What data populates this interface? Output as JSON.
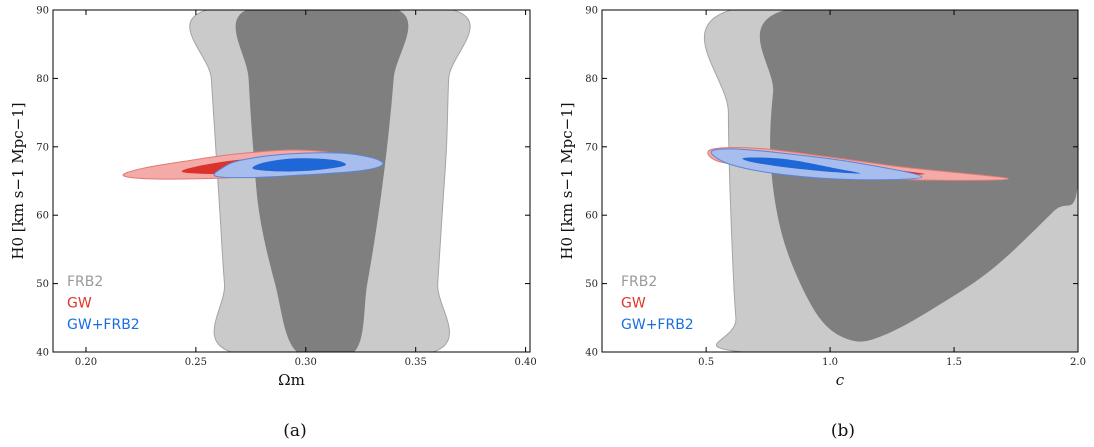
{
  "colors": {
    "frb_outer": "#cacaca",
    "frb_inner": "#7f7f7f",
    "gw_outer": "#f4aaa6",
    "gw_inner": "#d9332b",
    "joint_outer": "#a6bdee",
    "joint_inner": "#1f66d6",
    "legend_frb": "#9a9a9a",
    "legend_gw": "#e0362c",
    "legend_joint": "#1a6fe0"
  },
  "chart_data": [
    {
      "type": "contour",
      "panel_label": "(a)",
      "xlabel": "Ωm",
      "ylabel": "H0 [km s−1 Mpc−1]",
      "xlim": [
        0.185,
        0.402
      ],
      "ylim": [
        40,
        90
      ],
      "xticks": [
        0.2,
        0.25,
        0.3,
        0.35,
        0.4
      ],
      "xtick_labels": [
        "0.20",
        "0.25",
        "0.30",
        "0.35",
        "0.40"
      ],
      "yticks": [
        40,
        50,
        60,
        70,
        80,
        90
      ],
      "ytick_labels": [
        "40",
        "50",
        "60",
        "70",
        "80",
        "90"
      ],
      "legend": [
        "FRB2",
        "GW",
        "GW+FRB2"
      ],
      "legend_location": "lower-left",
      "series": [
        {
          "name": "FRB2",
          "level": "outer",
          "points": [
            [
              0.255,
              90
            ],
            [
              0.257,
              80
            ],
            [
              0.259,
              70
            ],
            [
              0.261,
              60
            ],
            [
              0.263,
              50
            ],
            [
              0.266,
              40
            ],
            [
              0.358,
              40
            ],
            [
              0.36,
              50
            ],
            [
              0.362,
              60
            ],
            [
              0.364,
              70
            ],
            [
              0.365,
              80
            ],
            [
              0.367,
              90
            ]
          ]
        },
        {
          "name": "FRB2",
          "level": "inner",
          "points": [
            [
              0.273,
              90
            ],
            [
              0.274,
              80
            ],
            [
              0.276,
              70
            ],
            [
              0.279,
              60
            ],
            [
              0.286,
              50
            ],
            [
              0.296,
              40
            ],
            [
              0.322,
              40
            ],
            [
              0.328,
              50
            ],
            [
              0.333,
              60
            ],
            [
              0.337,
              70
            ],
            [
              0.34,
              80
            ],
            [
              0.342,
              90
            ]
          ]
        },
        {
          "name": "GW",
          "level": "outer",
          "points": [
            [
              0.217,
              65.8
            ],
            [
              0.225,
              66.8
            ],
            [
              0.245,
              67.9
            ],
            [
              0.27,
              69.0
            ],
            [
              0.3,
              69.5
            ],
            [
              0.33,
              68.2
            ],
            [
              0.333,
              67.5
            ],
            [
              0.32,
              66.6
            ],
            [
              0.29,
              65.9
            ],
            [
              0.26,
              65.4
            ],
            [
              0.23,
              65.3
            ]
          ]
        },
        {
          "name": "GW",
          "level": "inner",
          "points": [
            [
              0.244,
              66.3
            ],
            [
              0.25,
              67.1
            ],
            [
              0.27,
              68.1
            ],
            [
              0.295,
              68.4
            ],
            [
              0.31,
              67.6
            ],
            [
              0.3,
              66.7
            ],
            [
              0.28,
              66.1
            ],
            [
              0.26,
              66.0
            ]
          ]
        },
        {
          "name": "GW+FRB2",
          "level": "outer",
          "points": [
            [
              0.259,
              65.7
            ],
            [
              0.262,
              66.9
            ],
            [
              0.27,
              68.0
            ],
            [
              0.29,
              68.9
            ],
            [
              0.315,
              69.1
            ],
            [
              0.33,
              68.4
            ],
            [
              0.335,
              67.4
            ],
            [
              0.325,
              66.5
            ],
            [
              0.3,
              65.9
            ],
            [
              0.275,
              65.5
            ]
          ]
        },
        {
          "name": "GW+FRB2",
          "level": "inner",
          "points": [
            [
              0.276,
              66.8
            ],
            [
              0.281,
              67.7
            ],
            [
              0.295,
              68.3
            ],
            [
              0.312,
              68.1
            ],
            [
              0.318,
              67.3
            ],
            [
              0.305,
              66.6
            ],
            [
              0.288,
              66.4
            ]
          ]
        }
      ]
    },
    {
      "type": "contour",
      "panel_label": "(b)",
      "xlabel": "c",
      "ylabel": "H0 [km s−1 Mpc−1]",
      "xlim": [
        0.08,
        2.0
      ],
      "ylim": [
        40,
        90
      ],
      "xticks": [
        0.5,
        1.0,
        1.5,
        2.0
      ],
      "xtick_labels": [
        "0.5",
        "1.0",
        "1.5",
        "2.0"
      ],
      "yticks": [
        40,
        50,
        60,
        70,
        80,
        90
      ],
      "ytick_labels": [
        "40",
        "50",
        "60",
        "70",
        "80",
        "90"
      ],
      "legend": [
        "FRB2",
        "GW",
        "GW+FRB2"
      ],
      "legend_location": "lower-left",
      "series": [
        {
          "name": "FRB2",
          "level": "outer",
          "points": [
            [
              0.6,
              90
            ],
            [
              0.59,
              75
            ],
            [
              0.6,
              60
            ],
            [
              0.62,
              45
            ],
            [
              0.65,
              40
            ],
            [
              2.0,
              40
            ],
            [
              2.0,
              90
            ]
          ]
        },
        {
          "name": "FRB2",
          "level": "inner",
          "points": [
            [
              0.82,
              90
            ],
            [
              0.77,
              78
            ],
            [
              0.76,
              68
            ],
            [
              0.8,
              58
            ],
            [
              0.88,
              50
            ],
            [
              0.98,
              44
            ],
            [
              1.1,
              41.6
            ],
            [
              1.22,
              42.5
            ],
            [
              1.4,
              46
            ],
            [
              1.65,
              52
            ],
            [
              1.9,
              60.5
            ],
            [
              2.0,
              64.5
            ],
            [
              2.0,
              90
            ]
          ]
        },
        {
          "name": "GW",
          "level": "outer",
          "points": [
            [
              0.52,
              69.6
            ],
            [
              0.7,
              69.8
            ],
            [
              1.0,
              68.5
            ],
            [
              1.3,
              67.0
            ],
            [
              1.72,
              65.3
            ],
            [
              1.3,
              65.2
            ],
            [
              1.0,
              66.0
            ],
            [
              0.7,
              67.0
            ],
            [
              0.54,
              68.0
            ]
          ]
        },
        {
          "name": "GW",
          "level": "inner",
          "points": [
            [
              0.66,
              68.8
            ],
            [
              0.9,
              68.0
            ],
            [
              1.2,
              66.9
            ],
            [
              1.38,
              66.0
            ],
            [
              1.15,
              66.2
            ],
            [
              0.85,
              67.0
            ],
            [
              0.68,
              67.9
            ]
          ]
        },
        {
          "name": "GW+FRB2",
          "level": "outer",
          "points": [
            [
              0.52,
              69.2
            ],
            [
              0.6,
              69.7
            ],
            [
              0.8,
              69.1
            ],
            [
              1.1,
              67.7
            ],
            [
              1.37,
              65.6
            ],
            [
              1.1,
              65.2
            ],
            [
              0.8,
              66.0
            ],
            [
              0.6,
              67.4
            ]
          ]
        },
        {
          "name": "GW+FRB2",
          "level": "inner",
          "points": [
            [
              0.66,
              68.4
            ],
            [
              0.82,
              68.2
            ],
            [
              1.03,
              66.8
            ],
            [
              1.12,
              66.1
            ],
            [
              0.95,
              66.5
            ],
            [
              0.78,
              67.2
            ],
            [
              0.67,
              67.9
            ]
          ]
        }
      ]
    }
  ]
}
